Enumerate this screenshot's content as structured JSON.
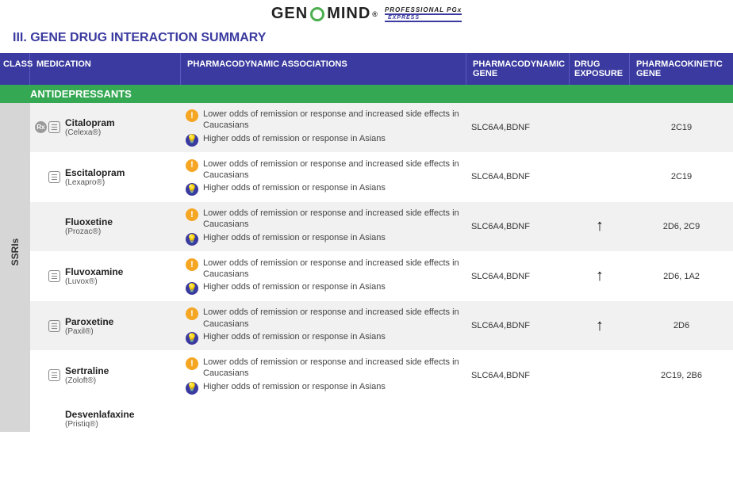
{
  "logo": {
    "pre": "GEN",
    "post": "MIND",
    "reg": "®",
    "sub_top": "PROFESSIONAL PGx",
    "sub_bot": "EXPRESS"
  },
  "section_title": "III.   GENE DRUG INTERACTION SUMMARY",
  "headers": {
    "class": "CLASS",
    "med": "MEDICATION",
    "pd": "PHARMACODYNAMIC ASSOCIATIONS",
    "pdgene": "PHARMACODYNAMIC GENE",
    "exp": "DRUG EXPOSURE",
    "pkgene": "PHARMACOKINETIC GENE"
  },
  "category": "ANTIDEPRESSANTS",
  "class_label": "SSRIs",
  "assoc_warn": "Lower odds of remission or response and increased side effects in Caucasians",
  "assoc_info": "Higher odds of remission or response in Asians",
  "rows": [
    {
      "name": "Citalopram",
      "brand": "(Celexa®)",
      "rx": true,
      "note": true,
      "pdgene": "SLC6A4,BDNF",
      "exp": "",
      "pkgene": "2C19",
      "alt": true
    },
    {
      "name": "Escitalopram",
      "brand": "(Lexapro®)",
      "rx": false,
      "note": true,
      "pdgene": "SLC6A4,BDNF",
      "exp": "",
      "pkgene": "2C19",
      "alt": false
    },
    {
      "name": "Fluoxetine",
      "brand": "(Prozac®)",
      "rx": false,
      "note": false,
      "pdgene": "SLC6A4,BDNF",
      "exp": "↑",
      "pkgene": "2D6, 2C9",
      "alt": true
    },
    {
      "name": "Fluvoxamine",
      "brand": "(Luvox®)",
      "rx": false,
      "note": true,
      "pdgene": "SLC6A4,BDNF",
      "exp": "↑",
      "pkgene": "2D6, 1A2",
      "alt": false
    },
    {
      "name": "Paroxetine",
      "brand": "(Paxil®)",
      "rx": false,
      "note": true,
      "pdgene": "SLC6A4,BDNF",
      "exp": "↑",
      "pkgene": "2D6",
      "alt": true
    },
    {
      "name": "Sertraline",
      "brand": "(Zoloft®)",
      "rx": false,
      "note": true,
      "pdgene": "SLC6A4,BDNF",
      "exp": "",
      "pkgene": "2C19, 2B6",
      "alt": false
    }
  ],
  "overflow": {
    "name": "Desvenlafaxine",
    "brand": "(Pristiq®)"
  },
  "colors": {
    "header_bg": "#3a3aa0",
    "category_bg": "#34a853",
    "rail_bg": "#d6d6d6",
    "alt_bg": "#f1f1f1",
    "warn_bg": "#f5a623",
    "info_bg": "#3a3aa0"
  }
}
